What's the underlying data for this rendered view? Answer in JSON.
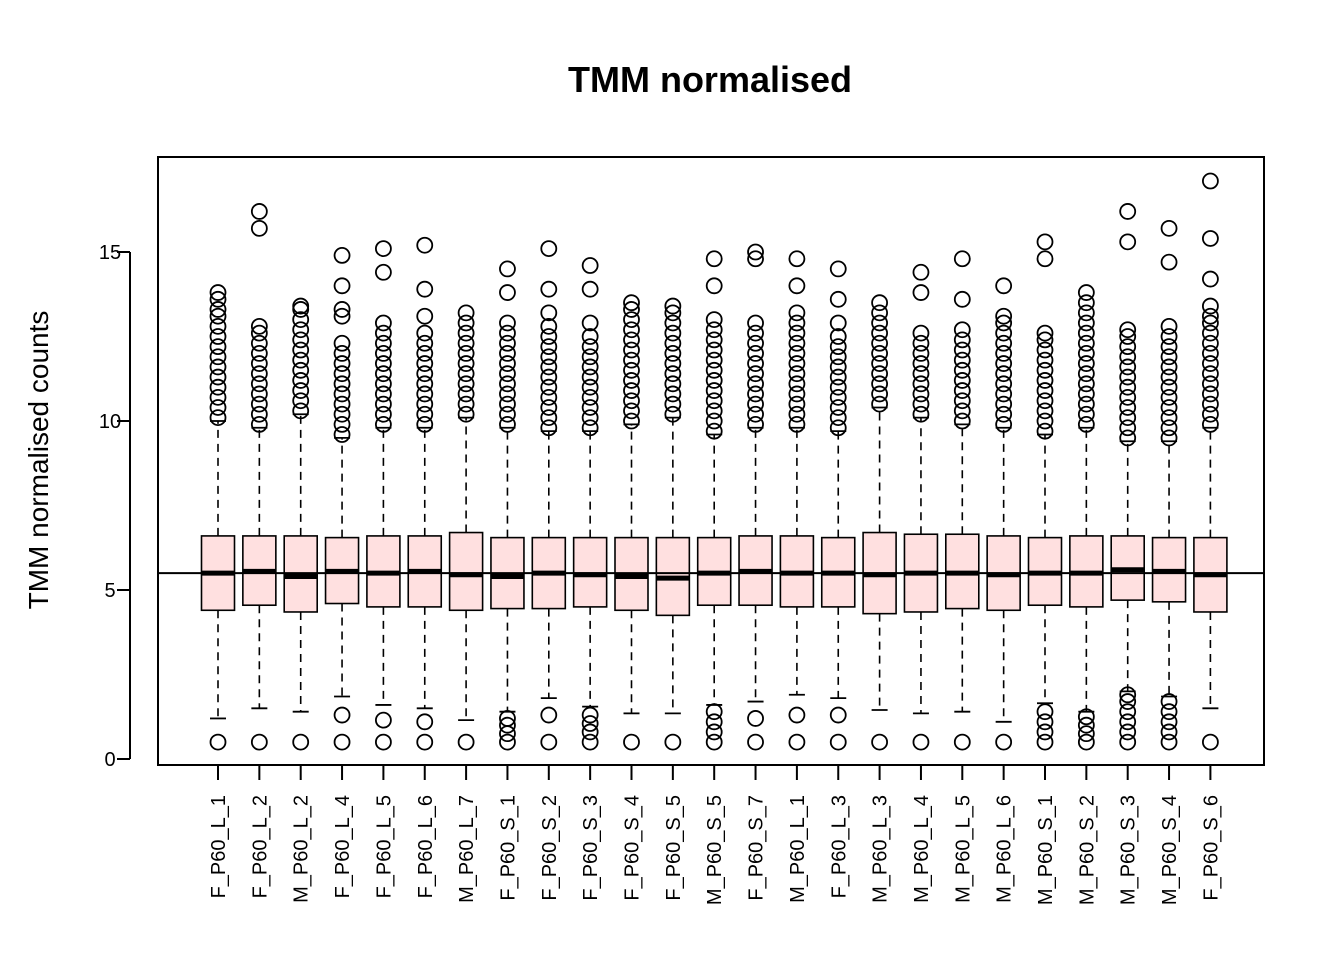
{
  "chart_data": {
    "type": "boxplot",
    "title": "TMM normalised",
    "ylabel": "TMM normalised counts",
    "xlabel": "",
    "ylim": [
      0,
      17.5
    ],
    "yticks": [
      0,
      5,
      10,
      15
    ],
    "reference_line": 5.5,
    "box_color": "#ffe0e0",
    "categories": [
      "F_P60_L_1",
      "F_P60_L_2",
      "M_P60_L_2",
      "F_P60_L_4",
      "F_P60_L_5",
      "F_P60_L_6",
      "M_P60_L_7",
      "F_P60_S_1",
      "F_P60_S_2",
      "F_P60_S_3",
      "F_P60_S_4",
      "F_P60_S_5",
      "M_P60_S_5",
      "F_P60_S_7",
      "M_P60_L_1",
      "F_P60_L_3",
      "M_P60_L_3",
      "M_P60_L_4",
      "M_P60_L_5",
      "M_P60_L_6",
      "M_P60_S_1",
      "M_P60_S_2",
      "M_P60_S_3",
      "M_P60_S_4",
      "F_P60_S_6"
    ],
    "boxes": [
      {
        "whisker_low": 1.2,
        "q1": 4.4,
        "median": 5.5,
        "q3": 6.6,
        "whisker_high": 10.0,
        "outliers_high": [
          10.1,
          10.4,
          10.7,
          11.0,
          11.3,
          11.6,
          11.9,
          12.2,
          12.5,
          12.8,
          13.1,
          13.3,
          13.6,
          13.8
        ],
        "outliers_low": [
          0.5
        ]
      },
      {
        "whisker_low": 1.5,
        "q1": 4.55,
        "median": 5.55,
        "q3": 6.6,
        "whisker_high": 9.8,
        "outliers_high": [
          9.9,
          10.2,
          10.5,
          10.8,
          11.1,
          11.4,
          11.7,
          12.0,
          12.3,
          12.6,
          12.8,
          15.7,
          16.2
        ],
        "outliers_low": [
          0.5
        ]
      },
      {
        "whisker_low": 1.4,
        "q1": 4.35,
        "median": 5.4,
        "q3": 6.6,
        "whisker_high": 10.2,
        "outliers_high": [
          10.3,
          10.6,
          10.9,
          11.2,
          11.5,
          11.8,
          12.1,
          12.4,
          12.7,
          13.0,
          13.3,
          13.4
        ],
        "outliers_low": [
          0.5
        ]
      },
      {
        "whisker_low": 1.85,
        "q1": 4.6,
        "median": 5.55,
        "q3": 6.55,
        "whisker_high": 9.5,
        "outliers_high": [
          9.6,
          9.9,
          10.2,
          10.5,
          10.8,
          11.1,
          11.4,
          11.7,
          12.0,
          12.3,
          13.1,
          13.3,
          14.0,
          14.9
        ],
        "outliers_low": [
          0.5,
          1.3
        ]
      },
      {
        "whisker_low": 1.6,
        "q1": 4.5,
        "median": 5.5,
        "q3": 6.6,
        "whisker_high": 9.8,
        "outliers_high": [
          9.9,
          10.2,
          10.5,
          10.8,
          11.1,
          11.4,
          11.7,
          12.0,
          12.3,
          12.6,
          12.9,
          14.4,
          15.1
        ],
        "outliers_low": [
          0.5,
          1.15
        ]
      },
      {
        "whisker_low": 1.5,
        "q1": 4.5,
        "median": 5.55,
        "q3": 6.6,
        "whisker_high": 9.8,
        "outliers_high": [
          9.9,
          10.2,
          10.5,
          10.8,
          11.1,
          11.4,
          11.7,
          12.0,
          12.3,
          12.6,
          13.1,
          13.9,
          15.2
        ],
        "outliers_low": [
          0.5,
          1.1
        ]
      },
      {
        "whisker_low": 1.15,
        "q1": 4.4,
        "median": 5.45,
        "q3": 6.7,
        "whisker_high": 10.1,
        "outliers_high": [
          10.2,
          10.5,
          10.8,
          11.1,
          11.4,
          11.7,
          12.0,
          12.3,
          12.6,
          12.9,
          13.2
        ],
        "outliers_low": [
          0.5
        ]
      },
      {
        "whisker_low": 1.4,
        "q1": 4.45,
        "median": 5.4,
        "q3": 6.55,
        "whisker_high": 9.8,
        "outliers_high": [
          9.9,
          10.2,
          10.5,
          10.8,
          11.1,
          11.4,
          11.7,
          12.0,
          12.3,
          12.6,
          12.9,
          13.8,
          14.5
        ],
        "outliers_low": [
          0.5,
          0.75,
          1.0,
          1.2
        ]
      },
      {
        "whisker_low": 1.8,
        "q1": 4.45,
        "median": 5.5,
        "q3": 6.55,
        "whisker_high": 9.7,
        "outliers_high": [
          9.8,
          10.1,
          10.4,
          10.7,
          11.0,
          11.3,
          11.6,
          11.9,
          12.2,
          12.5,
          12.8,
          13.2,
          13.9,
          15.1
        ],
        "outliers_low": [
          0.5,
          1.3
        ]
      },
      {
        "whisker_low": 1.55,
        "q1": 4.5,
        "median": 5.45,
        "q3": 6.55,
        "whisker_high": 9.7,
        "outliers_high": [
          9.8,
          10.1,
          10.4,
          10.7,
          11.0,
          11.3,
          11.6,
          11.9,
          12.2,
          12.5,
          12.9,
          13.9,
          14.6
        ],
        "outliers_low": [
          0.5,
          0.8,
          1.05,
          1.3
        ]
      },
      {
        "whisker_low": 1.35,
        "q1": 4.4,
        "median": 5.4,
        "q3": 6.55,
        "whisker_high": 9.9,
        "outliers_high": [
          10.0,
          10.3,
          10.6,
          10.9,
          11.2,
          11.5,
          11.8,
          12.1,
          12.4,
          12.7,
          13.0,
          13.3,
          13.5
        ],
        "outliers_low": [
          0.5
        ]
      },
      {
        "whisker_low": 1.35,
        "q1": 4.25,
        "median": 5.35,
        "q3": 6.55,
        "whisker_high": 10.1,
        "outliers_high": [
          10.2,
          10.5,
          10.8,
          11.1,
          11.4,
          11.7,
          12.0,
          12.3,
          12.6,
          12.9,
          13.2,
          13.4
        ],
        "outliers_low": [
          0.5
        ]
      },
      {
        "whisker_low": 1.6,
        "q1": 4.55,
        "median": 5.5,
        "q3": 6.55,
        "whisker_high": 9.6,
        "outliers_high": [
          9.7,
          10.0,
          10.3,
          10.6,
          10.9,
          11.2,
          11.5,
          11.8,
          12.1,
          12.4,
          12.7,
          13.0,
          14.0,
          14.8
        ],
        "outliers_low": [
          0.5,
          0.8,
          1.1,
          1.4
        ]
      },
      {
        "whisker_low": 1.7,
        "q1": 4.55,
        "median": 5.55,
        "q3": 6.6,
        "whisker_high": 9.8,
        "outliers_high": [
          9.9,
          10.2,
          10.5,
          10.8,
          11.1,
          11.4,
          11.7,
          12.0,
          12.3,
          12.6,
          12.9,
          14.8,
          15.0
        ],
        "outliers_low": [
          0.5,
          1.2
        ]
      },
      {
        "whisker_low": 1.9,
        "q1": 4.5,
        "median": 5.5,
        "q3": 6.6,
        "whisker_high": 9.8,
        "outliers_high": [
          9.9,
          10.2,
          10.5,
          10.8,
          11.1,
          11.4,
          11.7,
          12.0,
          12.3,
          12.6,
          12.9,
          13.2,
          14.0,
          14.8
        ],
        "outliers_low": [
          0.5,
          1.3
        ]
      },
      {
        "whisker_low": 1.8,
        "q1": 4.5,
        "median": 5.5,
        "q3": 6.55,
        "whisker_high": 9.7,
        "outliers_high": [
          9.8,
          10.1,
          10.4,
          10.7,
          11.0,
          11.3,
          11.6,
          11.9,
          12.2,
          12.5,
          12.9,
          13.6,
          14.5
        ],
        "outliers_low": [
          0.5,
          1.3
        ]
      },
      {
        "whisker_low": 1.45,
        "q1": 4.3,
        "median": 5.45,
        "q3": 6.7,
        "whisker_high": 10.4,
        "outliers_high": [
          10.5,
          10.8,
          11.1,
          11.4,
          11.7,
          12.0,
          12.3,
          12.6,
          12.9,
          13.2,
          13.5
        ],
        "outliers_low": [
          0.5
        ]
      },
      {
        "whisker_low": 1.35,
        "q1": 4.35,
        "median": 5.5,
        "q3": 6.65,
        "whisker_high": 10.1,
        "outliers_high": [
          10.2,
          10.5,
          10.8,
          11.1,
          11.4,
          11.7,
          12.0,
          12.3,
          12.6,
          13.8,
          14.4
        ],
        "outliers_low": [
          0.5
        ]
      },
      {
        "whisker_low": 1.4,
        "q1": 4.45,
        "median": 5.5,
        "q3": 6.65,
        "whisker_high": 9.9,
        "outliers_high": [
          10.0,
          10.3,
          10.6,
          10.9,
          11.2,
          11.5,
          11.8,
          12.1,
          12.4,
          12.7,
          13.6,
          14.8
        ],
        "outliers_low": [
          0.5
        ]
      },
      {
        "whisker_low": 1.1,
        "q1": 4.4,
        "median": 5.45,
        "q3": 6.6,
        "whisker_high": 9.8,
        "outliers_high": [
          9.9,
          10.2,
          10.5,
          10.8,
          11.1,
          11.4,
          11.7,
          12.0,
          12.3,
          12.6,
          12.9,
          13.1,
          14.0
        ],
        "outliers_low": [
          0.5
        ]
      },
      {
        "whisker_low": 1.65,
        "q1": 4.55,
        "median": 5.5,
        "q3": 6.55,
        "whisker_high": 9.6,
        "outliers_high": [
          9.7,
          10.0,
          10.3,
          10.6,
          10.9,
          11.2,
          11.5,
          11.8,
          12.1,
          12.4,
          12.6,
          14.8,
          15.3
        ],
        "outliers_low": [
          0.5,
          0.8,
          1.1,
          1.4
        ]
      },
      {
        "whisker_low": 1.4,
        "q1": 4.5,
        "median": 5.5,
        "q3": 6.6,
        "whisker_high": 9.8,
        "outliers_high": [
          9.9,
          10.2,
          10.5,
          10.8,
          11.1,
          11.4,
          11.7,
          12.0,
          12.3,
          12.6,
          12.9,
          13.2,
          13.5,
          13.8
        ],
        "outliers_low": [
          0.5,
          0.75,
          1.0,
          1.25
        ]
      },
      {
        "whisker_low": 2.0,
        "q1": 4.7,
        "median": 5.6,
        "q3": 6.6,
        "whisker_high": 9.4,
        "outliers_high": [
          9.5,
          9.8,
          10.1,
          10.4,
          10.7,
          11.0,
          11.3,
          11.6,
          11.9,
          12.2,
          12.5,
          12.7,
          15.3,
          16.2
        ],
        "outliers_low": [
          0.5,
          0.8,
          1.1,
          1.4,
          1.7,
          1.9
        ]
      },
      {
        "whisker_low": 1.85,
        "q1": 4.65,
        "median": 5.55,
        "q3": 6.55,
        "whisker_high": 9.4,
        "outliers_high": [
          9.5,
          9.8,
          10.1,
          10.4,
          10.7,
          11.0,
          11.3,
          11.6,
          11.9,
          12.2,
          12.5,
          12.8,
          14.7,
          15.7
        ],
        "outliers_low": [
          0.5,
          0.8,
          1.1,
          1.4,
          1.7
        ]
      },
      {
        "whisker_low": 1.5,
        "q1": 4.35,
        "median": 5.45,
        "q3": 6.55,
        "whisker_high": 9.8,
        "outliers_high": [
          9.9,
          10.2,
          10.5,
          10.8,
          11.1,
          11.4,
          11.7,
          12.0,
          12.3,
          12.6,
          12.9,
          13.1,
          13.4,
          14.2,
          15.4,
          17.1
        ],
        "outliers_low": [
          0.5
        ]
      }
    ]
  }
}
